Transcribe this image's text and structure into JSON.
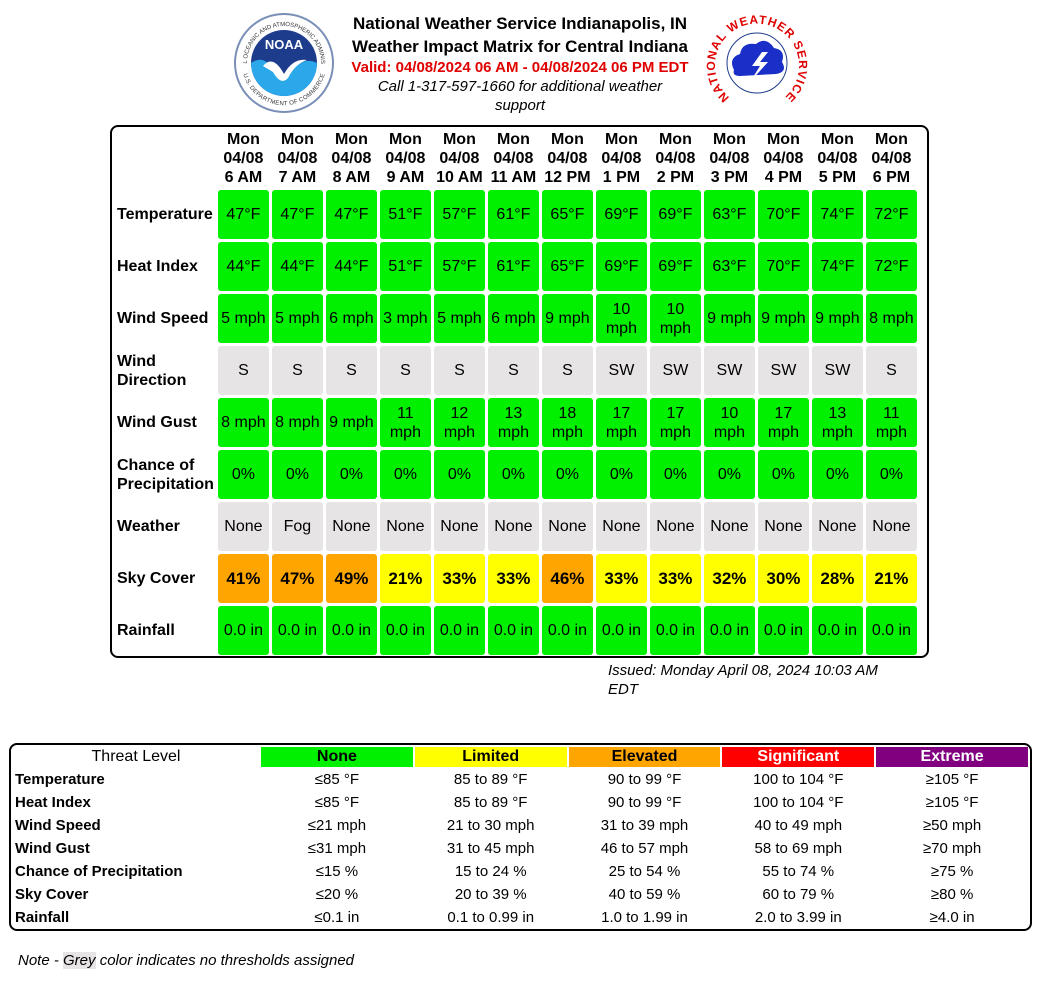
{
  "header": {
    "title": "National Weather Service Indianapolis, IN",
    "subtitle": "Weather Impact Matrix for Central Indiana",
    "valid": "Valid: 04/08/2024 06 AM - 04/08/2024 06 PM EDT",
    "contact": "Call 1-317-597-1660 for additional weather support",
    "noaa_logo": {
      "acronym": "NOAA",
      "ring_top": "NATIONAL OCEANIC AND ATMOSPHERIC ADMINISTRATION",
      "ring_bottom": "U.S. DEPARTMENT OF COMMERCE"
    },
    "nws_logo": {
      "ring": "NATIONAL WEATHER SERVICE"
    }
  },
  "matrix": {
    "columns": [
      {
        "day": "Mon",
        "date": "04/08",
        "time": "6 AM"
      },
      {
        "day": "Mon",
        "date": "04/08",
        "time": "7 AM"
      },
      {
        "day": "Mon",
        "date": "04/08",
        "time": "8 AM"
      },
      {
        "day": "Mon",
        "date": "04/08",
        "time": "9 AM"
      },
      {
        "day": "Mon",
        "date": "04/08",
        "time": "10 AM"
      },
      {
        "day": "Mon",
        "date": "04/08",
        "time": "11 AM"
      },
      {
        "day": "Mon",
        "date": "04/08",
        "time": "12 PM"
      },
      {
        "day": "Mon",
        "date": "04/08",
        "time": "1 PM"
      },
      {
        "day": "Mon",
        "date": "04/08",
        "time": "2 PM"
      },
      {
        "day": "Mon",
        "date": "04/08",
        "time": "3 PM"
      },
      {
        "day": "Mon",
        "date": "04/08",
        "time": "4 PM"
      },
      {
        "day": "Mon",
        "date": "04/08",
        "time": "5 PM"
      },
      {
        "day": "Mon",
        "date": "04/08",
        "time": "6 PM"
      }
    ],
    "rows": [
      {
        "label": "Temperature",
        "cells": [
          "47°F",
          "47°F",
          "47°F",
          "51°F",
          "57°F",
          "61°F",
          "65°F",
          "69°F",
          "69°F",
          "63°F",
          "70°F",
          "74°F",
          "72°F"
        ],
        "colors": [
          "#00f000",
          "#00f000",
          "#00f000",
          "#00f000",
          "#00f000",
          "#00f000",
          "#00f000",
          "#00f000",
          "#00f000",
          "#00f000",
          "#00f000",
          "#00f000",
          "#00f000"
        ]
      },
      {
        "label": "Heat Index",
        "cells": [
          "44°F",
          "44°F",
          "44°F",
          "51°F",
          "57°F",
          "61°F",
          "65°F",
          "69°F",
          "69°F",
          "63°F",
          "70°F",
          "74°F",
          "72°F"
        ],
        "colors": [
          "#00f000",
          "#00f000",
          "#00f000",
          "#00f000",
          "#00f000",
          "#00f000",
          "#00f000",
          "#00f000",
          "#00f000",
          "#00f000",
          "#00f000",
          "#00f000",
          "#00f000"
        ]
      },
      {
        "label": "Wind Speed",
        "cells": [
          "5 mph",
          "5 mph",
          "6 mph",
          "3 mph",
          "5 mph",
          "6 mph",
          "9 mph",
          "10 mph",
          "10 mph",
          "9 mph",
          "9 mph",
          "9 mph",
          "8 mph"
        ],
        "colors": [
          "#00f000",
          "#00f000",
          "#00f000",
          "#00f000",
          "#00f000",
          "#00f000",
          "#00f000",
          "#00f000",
          "#00f000",
          "#00f000",
          "#00f000",
          "#00f000",
          "#00f000"
        ]
      },
      {
        "label": "Wind Direction",
        "cells": [
          "S",
          "S",
          "S",
          "S",
          "S",
          "S",
          "S",
          "SW",
          "SW",
          "SW",
          "SW",
          "SW",
          "S"
        ],
        "colors": [
          "#e6e4e4",
          "#e6e4e4",
          "#e6e4e4",
          "#e6e4e4",
          "#e6e4e4",
          "#e6e4e4",
          "#e6e4e4",
          "#e6e4e4",
          "#e6e4e4",
          "#e6e4e4",
          "#e6e4e4",
          "#e6e4e4",
          "#e6e4e4"
        ]
      },
      {
        "label": "Wind Gust",
        "cells": [
          "8 mph",
          "8 mph",
          "9 mph",
          "11 mph",
          "12 mph",
          "13 mph",
          "18 mph",
          "17 mph",
          "17 mph",
          "10 mph",
          "17 mph",
          "13 mph",
          "11 mph"
        ],
        "colors": [
          "#00f000",
          "#00f000",
          "#00f000",
          "#00f000",
          "#00f000",
          "#00f000",
          "#00f000",
          "#00f000",
          "#00f000",
          "#00f000",
          "#00f000",
          "#00f000",
          "#00f000"
        ]
      },
      {
        "label": "Chance of Precipitation",
        "cells": [
          "0%",
          "0%",
          "0%",
          "0%",
          "0%",
          "0%",
          "0%",
          "0%",
          "0%",
          "0%",
          "0%",
          "0%",
          "0%"
        ],
        "colors": [
          "#00f000",
          "#00f000",
          "#00f000",
          "#00f000",
          "#00f000",
          "#00f000",
          "#00f000",
          "#00f000",
          "#00f000",
          "#00f000",
          "#00f000",
          "#00f000",
          "#00f000"
        ]
      },
      {
        "label": "Weather",
        "cells": [
          "None",
          "Fog",
          "None",
          "None",
          "None",
          "None",
          "None",
          "None",
          "None",
          "None",
          "None",
          "None",
          "None"
        ],
        "colors": [
          "#e6e4e4",
          "#e6e4e4",
          "#e6e4e4",
          "#e6e4e4",
          "#e6e4e4",
          "#e6e4e4",
          "#e6e4e4",
          "#e6e4e4",
          "#e6e4e4",
          "#e6e4e4",
          "#e6e4e4",
          "#e6e4e4",
          "#e6e4e4"
        ]
      },
      {
        "label": "Sky Cover",
        "cells": [
          "41%",
          "47%",
          "49%",
          "21%",
          "33%",
          "33%",
          "46%",
          "33%",
          "33%",
          "32%",
          "30%",
          "28%",
          "21%"
        ],
        "colors": [
          "#ffa500",
          "#ffa500",
          "#ffa500",
          "#ffff00",
          "#ffff00",
          "#ffff00",
          "#ffa500",
          "#ffff00",
          "#ffff00",
          "#ffff00",
          "#ffff00",
          "#ffff00",
          "#ffff00"
        ],
        "bold": true
      },
      {
        "label": "Rainfall",
        "cells": [
          "0.0 in",
          "0.0 in",
          "0.0 in",
          "0.0 in",
          "0.0 in",
          "0.0 in",
          "0.0 in",
          "0.0 in",
          "0.0 in",
          "0.0 in",
          "0.0 in",
          "0.0 in",
          "0.0 in"
        ],
        "colors": [
          "#00f000",
          "#00f000",
          "#00f000",
          "#00f000",
          "#00f000",
          "#00f000",
          "#00f000",
          "#00f000",
          "#00f000",
          "#00f000",
          "#00f000",
          "#00f000",
          "#00f000"
        ]
      }
    ],
    "issued": "Issued: Monday April 08, 2024 10:03 AM EDT"
  },
  "threats": {
    "header": "Threat Level",
    "levels": [
      {
        "name": "None",
        "color": "#00f000",
        "text_color": "#000"
      },
      {
        "name": "Limited",
        "color": "#ffff00",
        "text_color": "#000"
      },
      {
        "name": "Elevated",
        "color": "#ffa500",
        "text_color": "#000"
      },
      {
        "name": "Significant",
        "color": "#ff0000",
        "text_color": "#fff"
      },
      {
        "name": "Extreme",
        "color": "#800080",
        "text_color": "#fff"
      }
    ],
    "rows": [
      {
        "label": "Temperature",
        "values": [
          "≤85 °F",
          "85 to 89 °F",
          "90 to 99 °F",
          "100 to 104 °F",
          "≥105 °F"
        ]
      },
      {
        "label": "Heat Index",
        "values": [
          "≤85 °F",
          "85 to 89 °F",
          "90 to 99 °F",
          "100 to 104 °F",
          "≥105 °F"
        ]
      },
      {
        "label": "Wind Speed",
        "values": [
          "≤21 mph",
          "21 to 30 mph",
          "31 to 39 mph",
          "40 to 49 mph",
          "≥50 mph"
        ]
      },
      {
        "label": "Wind Gust",
        "values": [
          "≤31 mph",
          "31 to 45 mph",
          "46 to 57 mph",
          "58 to 69 mph",
          "≥70 mph"
        ]
      },
      {
        "label": "Chance of Precipitation",
        "values": [
          "≤15 %",
          "15 to 24 %",
          "25 to 54 %",
          "55 to 74 %",
          "≥75 %"
        ]
      },
      {
        "label": "Sky Cover",
        "values": [
          "≤20 %",
          "20 to 39 %",
          "40 to 59 %",
          "60 to 79 %",
          "≥80 %"
        ]
      },
      {
        "label": "Rainfall",
        "values": [
          "≤0.1 in",
          "0.1 to 0.99 in",
          "1.0 to 1.99 in",
          "2.0 to 3.99 in",
          "≥4.0 in"
        ]
      }
    ]
  },
  "note": {
    "prefix": "Note - ",
    "highlight": "Grey",
    "suffix": " color indicates no thresholds assigned"
  }
}
